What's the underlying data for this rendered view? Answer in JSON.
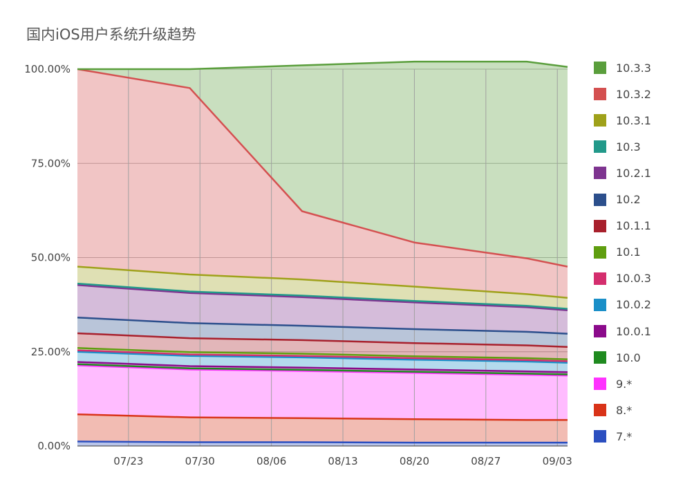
{
  "chart_data": {
    "type": "area",
    "stacked": true,
    "normalized": true,
    "title": "国内iOS用户系统升级趋势",
    "xlabel": "",
    "ylabel": "",
    "ylim": [
      0,
      100
    ],
    "yticks": [
      0,
      25,
      50,
      75,
      100
    ],
    "ytick_labels": [
      "0.00%",
      "25.00%",
      "50.00%",
      "75.00%",
      "100.00%"
    ],
    "xlim": [
      "07/18",
      "09/04"
    ],
    "x": [
      "07/18",
      "07/29",
      "08/09",
      "08/20",
      "08/31",
      "09/04"
    ],
    "xticks": [
      "07/23",
      "07/30",
      "08/06",
      "08/13",
      "08/20",
      "08/27",
      "09/03"
    ],
    "grid": true,
    "legend_position": "right",
    "series": [
      {
        "name": "7.*",
        "color": "#2b4fc0",
        "values": [
          1.2,
          1.0,
          1.0,
          0.9,
          0.9,
          0.9
        ]
      },
      {
        "name": "8.*",
        "color": "#d93318",
        "values": [
          7.2,
          6.6,
          6.4,
          6.2,
          6.0,
          6.0
        ]
      },
      {
        "name": "9.*",
        "color": "#ff33ff",
        "values": [
          13.0,
          12.7,
          12.5,
          12.3,
          12.0,
          11.8
        ]
      },
      {
        "name": "10.0",
        "color": "#1f8a1f",
        "values": [
          0.3,
          0.3,
          0.3,
          0.3,
          0.3,
          0.3
        ]
      },
      {
        "name": "10.0.1",
        "color": "#8b0a8b",
        "values": [
          0.6,
          0.6,
          0.6,
          0.6,
          0.6,
          0.6
        ]
      },
      {
        "name": "10.0.2",
        "color": "#1a8fc8",
        "values": [
          2.7,
          2.7,
          2.7,
          2.6,
          2.6,
          2.5
        ]
      },
      {
        "name": "10.0.3",
        "color": "#d42e6e",
        "values": [
          0.4,
          0.4,
          0.4,
          0.4,
          0.4,
          0.4
        ]
      },
      {
        "name": "10.1",
        "color": "#5f9e0f",
        "values": [
          0.6,
          0.6,
          0.6,
          0.5,
          0.5,
          0.5
        ]
      },
      {
        "name": "10.1.1",
        "color": "#a8202c",
        "values": [
          3.9,
          3.7,
          3.6,
          3.5,
          3.4,
          3.3
        ]
      },
      {
        "name": "10.2",
        "color": "#2c4f8c",
        "values": [
          4.2,
          4.0,
          3.8,
          3.7,
          3.6,
          3.5
        ]
      },
      {
        "name": "10.2.1",
        "color": "#7e3490",
        "values": [
          8.6,
          8.0,
          7.6,
          7.1,
          6.5,
          6.2
        ]
      },
      {
        "name": "10.3",
        "color": "#22998a",
        "values": [
          0.4,
          0.4,
          0.4,
          0.4,
          0.4,
          0.4
        ]
      },
      {
        "name": "10.3.1",
        "color": "#9fa11a",
        "values": [
          4.5,
          4.5,
          4.3,
          3.8,
          3.1,
          2.9
        ]
      },
      {
        "name": "10.3.2",
        "color": "#d45050",
        "values": [
          52.4,
          49.5,
          18.1,
          11.7,
          9.5,
          8.3
        ]
      },
      {
        "name": "10.3.3",
        "color": "#5a9e3c",
        "values": [
          0.0,
          5.0,
          38.7,
          48.0,
          52.2,
          53.0
        ]
      }
    ]
  }
}
